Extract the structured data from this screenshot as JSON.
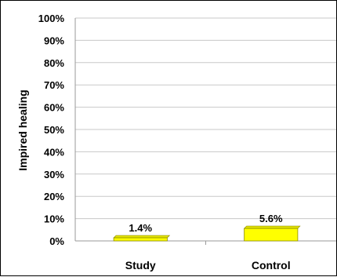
{
  "chart_data": {
    "type": "bar",
    "title": "",
    "xlabel": "",
    "ylabel": "Impired healing",
    "categories": [
      "Study",
      "Control"
    ],
    "values": [
      1.4,
      5.6
    ],
    "data_labels": [
      "1.4%",
      "5.6%"
    ],
    "ylim": [
      0,
      100
    ],
    "y_ticks": [
      "0%",
      "10%",
      "20%",
      "30%",
      "40%",
      "50%",
      "60%",
      "70%",
      "80%",
      "90%",
      "100%"
    ],
    "grid": true,
    "legend": "none",
    "bar_color": "#ffff00",
    "bar_edge_color": "#8c8c00"
  }
}
